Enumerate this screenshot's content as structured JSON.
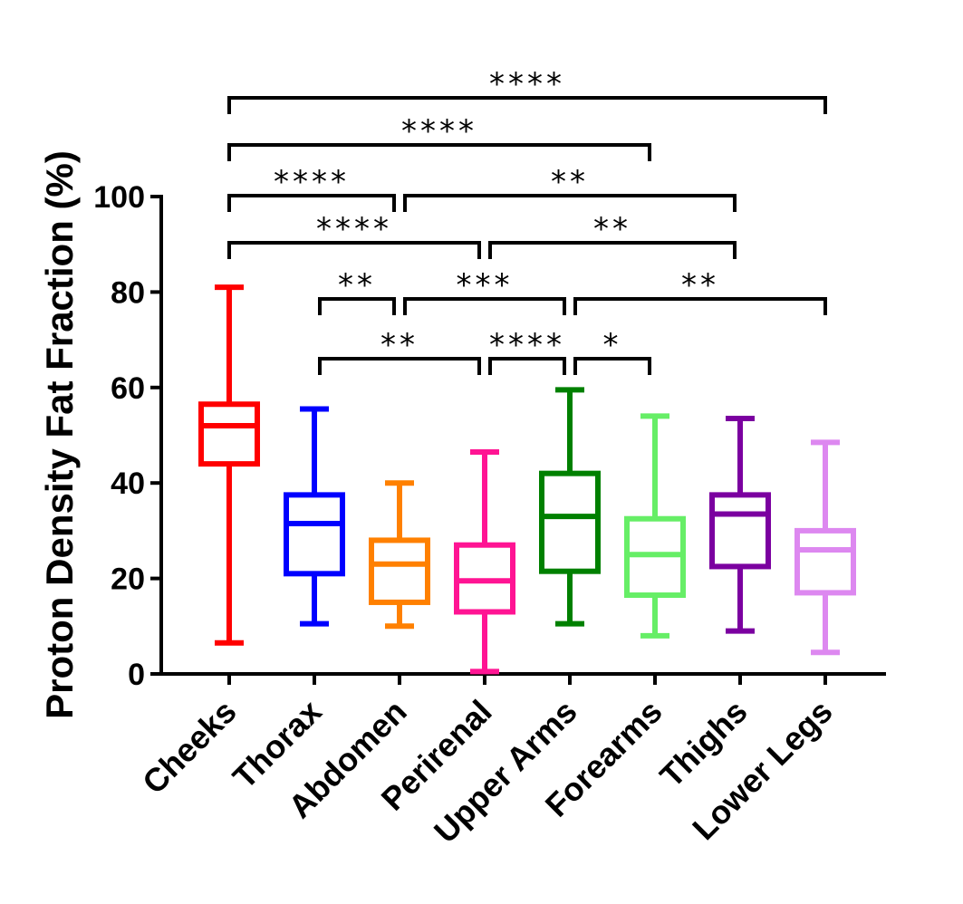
{
  "chart_data": {
    "type": "boxplot",
    "title": "",
    "xlabel": "",
    "ylabel": "Proton  Density  Fat  Fraction (%)",
    "ylim": [
      0,
      100
    ],
    "yticks": [
      "0",
      "20",
      "40",
      "60",
      "80",
      "100"
    ],
    "categories": [
      "Cheeks",
      "Thorax",
      "Abdomen",
      "Perirenal",
      "Upper Arms",
      "Forearms",
      "Thighs",
      "Lower Legs"
    ],
    "boxes": [
      {
        "name": "Cheeks",
        "color": "#ff0000",
        "min": 6.5,
        "q1": 44,
        "median": 52,
        "q3": 56.5,
        "max": 81
      },
      {
        "name": "Thorax",
        "color": "#0000ff",
        "min": 10.5,
        "q1": 21,
        "median": 31.5,
        "q3": 37.5,
        "max": 55.5
      },
      {
        "name": "Abdomen",
        "color": "#ff8000",
        "min": 10,
        "q1": 15,
        "median": 23,
        "q3": 28,
        "max": 40
      },
      {
        "name": "Perirenal",
        "color": "#ff1493",
        "min": 0.5,
        "q1": 13,
        "median": 19.5,
        "q3": 27,
        "max": 46.5
      },
      {
        "name": "Upper Arms",
        "color": "#008000",
        "min": 10.5,
        "q1": 21.5,
        "median": 33,
        "q3": 42,
        "max": 59.5
      },
      {
        "name": "Forearms",
        "color": "#66ee66",
        "min": 8,
        "q1": 16.5,
        "median": 25,
        "q3": 32.5,
        "max": 54
      },
      {
        "name": "Thighs",
        "color": "#7b00a0",
        "min": 9,
        "q1": 22.5,
        "median": 33.5,
        "q3": 37.5,
        "max": 53.5
      },
      {
        "name": "Lower Legs",
        "color": "#dd88f0",
        "min": 4.5,
        "q1": 17,
        "median": 26,
        "q3": 30,
        "max": 48.5
      }
    ],
    "significance": [
      {
        "from": 0,
        "to": 7,
        "label": "****"
      },
      {
        "from": 0,
        "to": 5,
        "label": "****"
      },
      {
        "from": 0,
        "to": 2,
        "label": "****"
      },
      {
        "from": 2,
        "to": 6,
        "label": "**"
      },
      {
        "from": 0,
        "to": 3,
        "label": "****"
      },
      {
        "from": 3,
        "to": 6,
        "label": "**"
      },
      {
        "from": 1,
        "to": 2,
        "label": "**"
      },
      {
        "from": 2,
        "to": 4,
        "label": "***"
      },
      {
        "from": 4,
        "to": 7,
        "label": "**"
      },
      {
        "from": 1,
        "to": 3,
        "label": "**"
      },
      {
        "from": 3,
        "to": 4,
        "label": "****"
      },
      {
        "from": 4,
        "to": 5,
        "label": "*"
      }
    ]
  }
}
